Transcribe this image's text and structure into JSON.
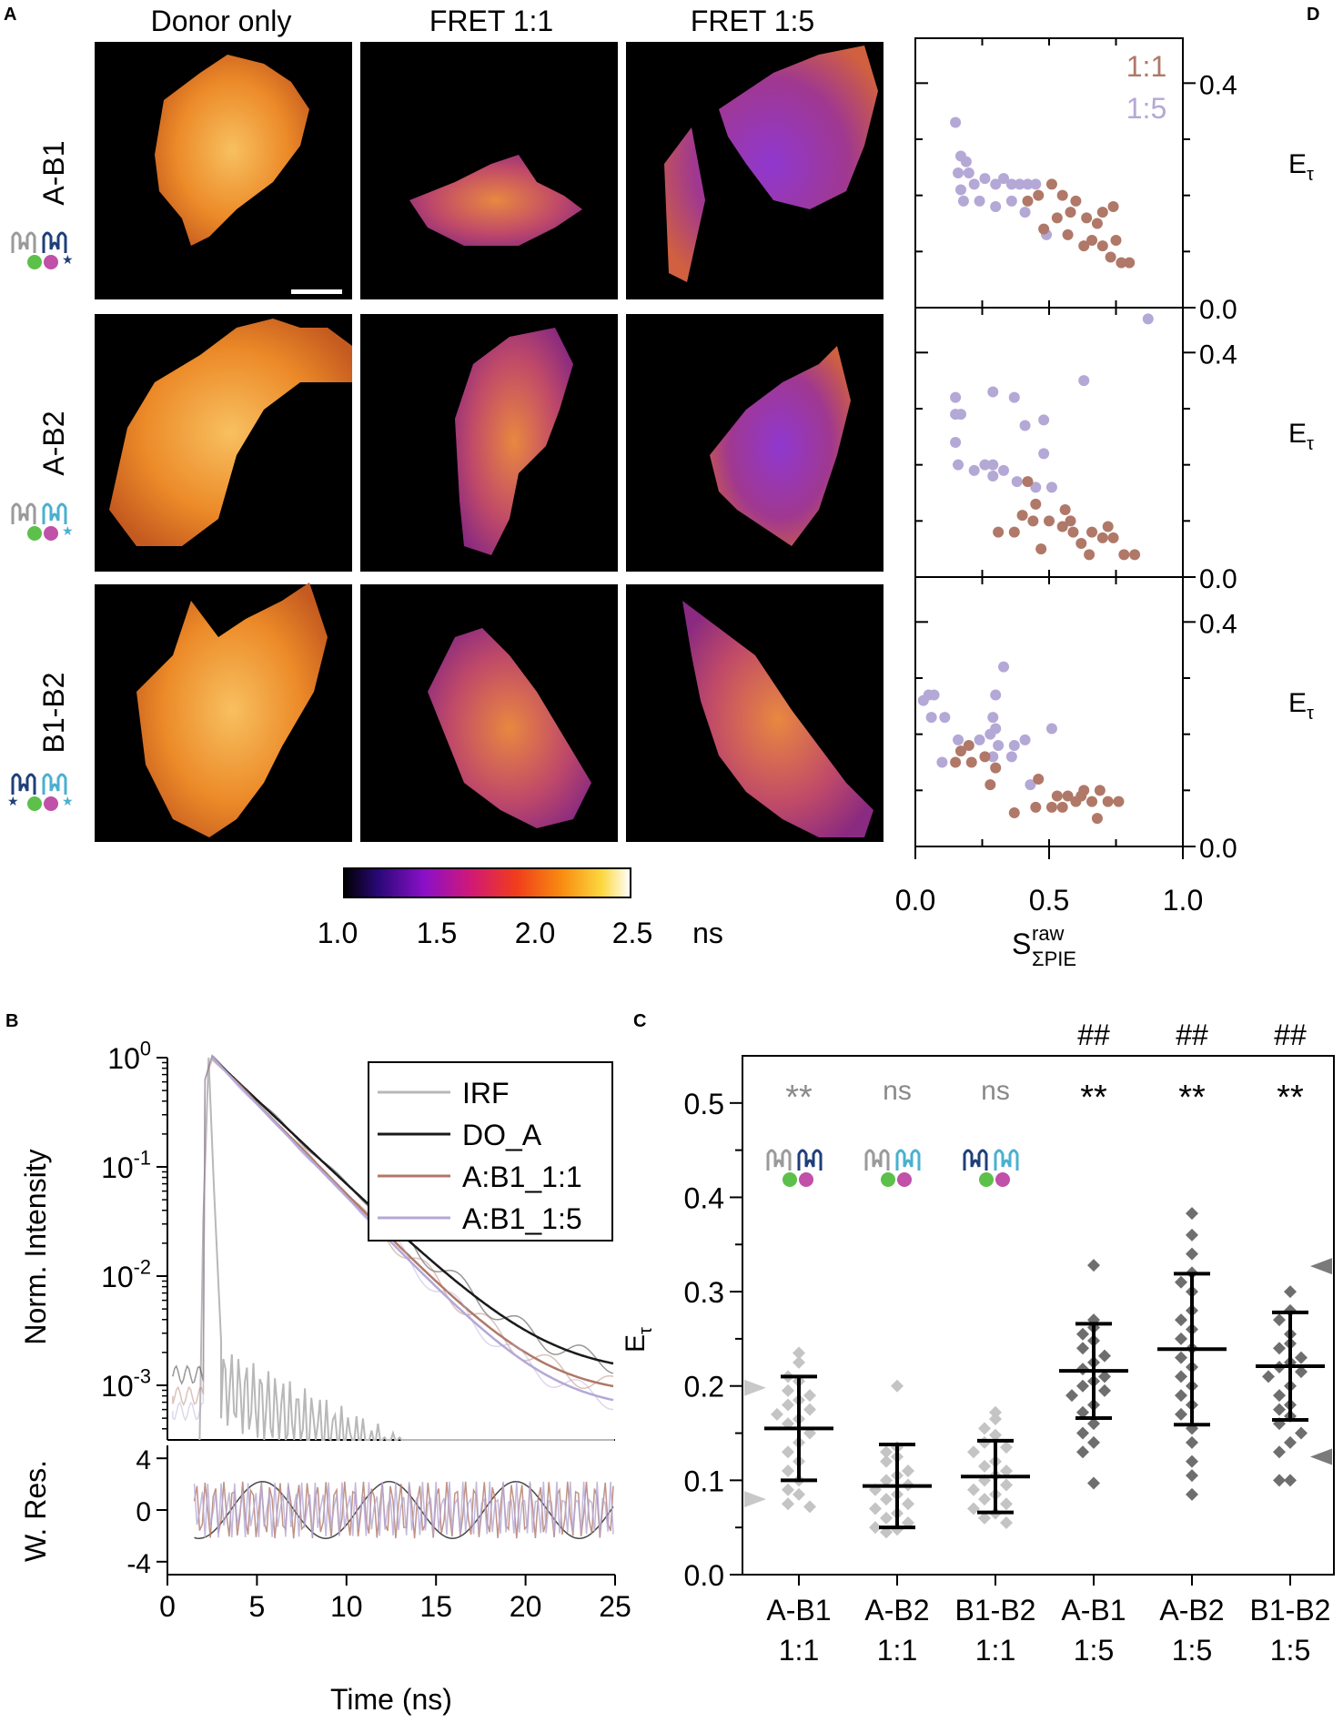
{
  "panels": {
    "a": "A",
    "b": "B",
    "c": "C",
    "d": "D"
  },
  "colors": {
    "c11": "#b07868",
    "c15": "#b4a8d6",
    "irf": "#b8b8b8",
    "doa": "#1a1a1a",
    "light": "#c4c4c4",
    "dark": "#6e6e6e"
  },
  "images": {
    "columns": [
      "Donor only",
      "FRET 1:1",
      "FRET 1:5"
    ],
    "rows": [
      "A-B1",
      "A-B2",
      "B1-B2"
    ],
    "colorbar": {
      "ticks": [
        "1.0",
        "1.5",
        "2.0",
        "2.5"
      ],
      "unit": "ns",
      "range": [
        1.0,
        2.5
      ]
    }
  },
  "chart_data": [
    {
      "panel": "D",
      "type": "scatter",
      "legend": [
        "1:1",
        "1:5"
      ],
      "ylabel": "Eτ",
      "xlabel": "S",
      "xlabel_sup": "raw",
      "xlabel_sub": "ΣPIE",
      "xlim": [
        0,
        1.0
      ],
      "ylim": [
        0,
        0.48
      ],
      "xticks": [
        "0.0",
        "0.5",
        "1.0"
      ],
      "yticks": [
        "0.0",
        "0.4"
      ],
      "rows": [
        {
          "name": "A-B1",
          "s11": [
            [
              0.42,
              0.19
            ],
            [
              0.46,
              0.2
            ],
            [
              0.51,
              0.22
            ],
            [
              0.55,
              0.2
            ],
            [
              0.58,
              0.17
            ],
            [
              0.6,
              0.19
            ],
            [
              0.64,
              0.16
            ],
            [
              0.68,
              0.15
            ],
            [
              0.7,
              0.17
            ],
            [
              0.74,
              0.18
            ],
            [
              0.53,
              0.16
            ],
            [
              0.63,
              0.11
            ],
            [
              0.66,
              0.12
            ],
            [
              0.7,
              0.11
            ],
            [
              0.73,
              0.09
            ],
            [
              0.75,
              0.12
            ],
            [
              0.77,
              0.08
            ],
            [
              0.8,
              0.08
            ],
            [
              0.57,
              0.13
            ],
            [
              0.48,
              0.14
            ]
          ],
          "s15": [
            [
              0.15,
              0.33
            ],
            [
              0.17,
              0.27
            ],
            [
              0.19,
              0.26
            ],
            [
              0.16,
              0.24
            ],
            [
              0.2,
              0.24
            ],
            [
              0.17,
              0.21
            ],
            [
              0.22,
              0.22
            ],
            [
              0.26,
              0.23
            ],
            [
              0.3,
              0.22
            ],
            [
              0.33,
              0.23
            ],
            [
              0.36,
              0.22
            ],
            [
              0.39,
              0.22
            ],
            [
              0.42,
              0.22
            ],
            [
              0.45,
              0.22
            ],
            [
              0.18,
              0.19
            ],
            [
              0.24,
              0.19
            ],
            [
              0.3,
              0.18
            ],
            [
              0.36,
              0.19
            ],
            [
              0.41,
              0.17
            ],
            [
              0.49,
              0.13
            ]
          ]
        },
        {
          "name": "A-B2",
          "s11": [
            [
              0.42,
              0.17
            ],
            [
              0.45,
              0.13
            ],
            [
              0.4,
              0.11
            ],
            [
              0.44,
              0.1
            ],
            [
              0.56,
              0.12
            ],
            [
              0.58,
              0.1
            ],
            [
              0.59,
              0.08
            ],
            [
              0.37,
              0.08
            ],
            [
              0.47,
              0.05
            ],
            [
              0.55,
              0.09
            ],
            [
              0.66,
              0.08
            ],
            [
              0.7,
              0.07
            ],
            [
              0.72,
              0.09
            ],
            [
              0.74,
              0.07
            ],
            [
              0.78,
              0.04
            ],
            [
              0.82,
              0.04
            ],
            [
              0.65,
              0.04
            ],
            [
              0.31,
              0.08
            ],
            [
              0.5,
              0.1
            ],
            [
              0.62,
              0.06
            ]
          ],
          "s15": [
            [
              0.87,
              0.46
            ],
            [
              0.63,
              0.35
            ],
            [
              0.29,
              0.33
            ],
            [
              0.37,
              0.32
            ],
            [
              0.41,
              0.27
            ],
            [
              0.15,
              0.32
            ],
            [
              0.15,
              0.29
            ],
            [
              0.17,
              0.29
            ],
            [
              0.48,
              0.28
            ],
            [
              0.15,
              0.24
            ],
            [
              0.22,
              0.19
            ],
            [
              0.26,
              0.2
            ],
            [
              0.29,
              0.18
            ],
            [
              0.16,
              0.2
            ],
            [
              0.48,
              0.22
            ],
            [
              0.51,
              0.16
            ],
            [
              0.29,
              0.2
            ],
            [
              0.33,
              0.19
            ],
            [
              0.38,
              0.17
            ],
            [
              0.45,
              0.16
            ]
          ]
        },
        {
          "name": "B1-B2",
          "s11": [
            [
              0.17,
              0.17
            ],
            [
              0.2,
              0.18
            ],
            [
              0.15,
              0.15
            ],
            [
              0.21,
              0.15
            ],
            [
              0.26,
              0.16
            ],
            [
              0.3,
              0.14
            ],
            [
              0.28,
              0.11
            ],
            [
              0.46,
              0.12
            ],
            [
              0.51,
              0.07
            ],
            [
              0.53,
              0.09
            ],
            [
              0.55,
              0.07
            ],
            [
              0.57,
              0.09
            ],
            [
              0.6,
              0.08
            ],
            [
              0.62,
              0.09
            ],
            [
              0.66,
              0.08
            ],
            [
              0.69,
              0.1
            ],
            [
              0.72,
              0.08
            ],
            [
              0.76,
              0.08
            ],
            [
              0.63,
              0.1
            ],
            [
              0.37,
              0.06
            ],
            [
              0.45,
              0.07
            ],
            [
              0.68,
              0.05
            ]
          ],
          "s15": [
            [
              0.03,
              0.26
            ],
            [
              0.05,
              0.27
            ],
            [
              0.07,
              0.27
            ],
            [
              0.06,
              0.23
            ],
            [
              0.11,
              0.23
            ],
            [
              0.33,
              0.32
            ],
            [
              0.3,
              0.27
            ],
            [
              0.29,
              0.23
            ],
            [
              0.28,
              0.2
            ],
            [
              0.3,
              0.21
            ],
            [
              0.31,
              0.18
            ],
            [
              0.37,
              0.18
            ],
            [
              0.41,
              0.19
            ],
            [
              0.51,
              0.21
            ],
            [
              0.16,
              0.19
            ],
            [
              0.24,
              0.19
            ],
            [
              0.1,
              0.15
            ],
            [
              0.29,
              0.16
            ],
            [
              0.36,
              0.16
            ],
            [
              0.43,
              0.11
            ]
          ]
        }
      ]
    },
    {
      "panel": "B",
      "type": "line",
      "ylabel": "Norm. Intensity",
      "ylabel_res": "W. Res.",
      "xlabel": "Time (ns)",
      "xlim": [
        0,
        25
      ],
      "ylim_log10": [
        -3.5,
        0
      ],
      "xticks": [
        "0",
        "5",
        "10",
        "15",
        "20",
        "25"
      ],
      "yticks": [
        {
          "base": "10",
          "exp": "0",
          "v": 0
        },
        {
          "base": "10",
          "exp": "-1",
          "v": -1
        },
        {
          "base": "10",
          "exp": "-2",
          "v": -2
        },
        {
          "base": "10",
          "exp": "-3",
          "v": -3
        }
      ],
      "res_ylim": [
        -5,
        5
      ],
      "res_yticks": [
        "4",
        "0",
        "-4"
      ],
      "legend": [
        "IRF",
        "DO_A",
        "A:B1_1:1",
        "A:B1_1:5"
      ],
      "series": [
        {
          "name": "DO_A",
          "tau": 2.8,
          "bg": 0.00125
        },
        {
          "name": "A:B1_1:1",
          "tau": 2.6,
          "bg": 0.0008
        },
        {
          "name": "A:B1_1:5",
          "tau": 2.55,
          "bg": 0.00058
        }
      ]
    },
    {
      "panel": "C",
      "type": "scatter",
      "ylabel": "Eτ",
      "ylim": [
        0,
        0.55
      ],
      "yticks": [
        "0.0",
        "0.1",
        "0.2",
        "0.3",
        "0.4",
        "0.5"
      ],
      "categories": [
        "A-B1",
        "A-B2",
        "B1-B2",
        "A-B1",
        "A-B2",
        "B1-B2"
      ],
      "ratios": [
        "1:1",
        "1:1",
        "1:1",
        "1:5",
        "1:5",
        "1:5"
      ],
      "sig_stars": [
        "**",
        "ns",
        "ns",
        "**",
        "**",
        "**"
      ],
      "sig_hash": [
        "",
        "",
        "",
        "##",
        "##",
        "##"
      ],
      "means": [
        0.155,
        0.094,
        0.104,
        0.216,
        0.239,
        0.221
      ],
      "sd": [
        0.055,
        0.044,
        0.038,
        0.05,
        0.08,
        0.057
      ],
      "points": [
        [
          0.235,
          0.225,
          0.21,
          0.205,
          0.195,
          0.19,
          0.185,
          0.18,
          0.175,
          0.17,
          0.165,
          0.16,
          0.15,
          0.14,
          0.13,
          0.12,
          0.11,
          0.1,
          0.09,
          0.085,
          0.075,
          0.072
        ],
        [
          0.2,
          0.135,
          0.13,
          0.125,
          0.12,
          0.11,
          0.105,
          0.1,
          0.095,
          0.09,
          0.085,
          0.08,
          0.075,
          0.07,
          0.065,
          0.06,
          0.055,
          0.05,
          0.048,
          0.045
        ],
        [
          0.172,
          0.165,
          0.155,
          0.148,
          0.14,
          0.135,
          0.13,
          0.12,
          0.115,
          0.11,
          0.105,
          0.1,
          0.095,
          0.09,
          0.085,
          0.08,
          0.075,
          0.07,
          0.065,
          0.06,
          0.055
        ],
        [
          0.328,
          0.27,
          0.262,
          0.255,
          0.248,
          0.24,
          0.232,
          0.225,
          0.218,
          0.21,
          0.205,
          0.2,
          0.195,
          0.19,
          0.18,
          0.172,
          0.16,
          0.15,
          0.14,
          0.13,
          0.097
        ],
        [
          0.383,
          0.36,
          0.34,
          0.32,
          0.31,
          0.3,
          0.28,
          0.27,
          0.26,
          0.25,
          0.24,
          0.23,
          0.22,
          0.21,
          0.2,
          0.19,
          0.18,
          0.17,
          0.155,
          0.14,
          0.12,
          0.105,
          0.085
        ],
        [
          0.3,
          0.28,
          0.27,
          0.255,
          0.245,
          0.24,
          0.23,
          0.225,
          0.22,
          0.215,
          0.21,
          0.2,
          0.19,
          0.18,
          0.175,
          0.168,
          0.16,
          0.15,
          0.14,
          0.13,
          0.1,
          0.1
        ]
      ],
      "markers_left": [
        0.198,
        0.08
      ],
      "markers_right": [
        0.327,
        0.125
      ]
    }
  ]
}
